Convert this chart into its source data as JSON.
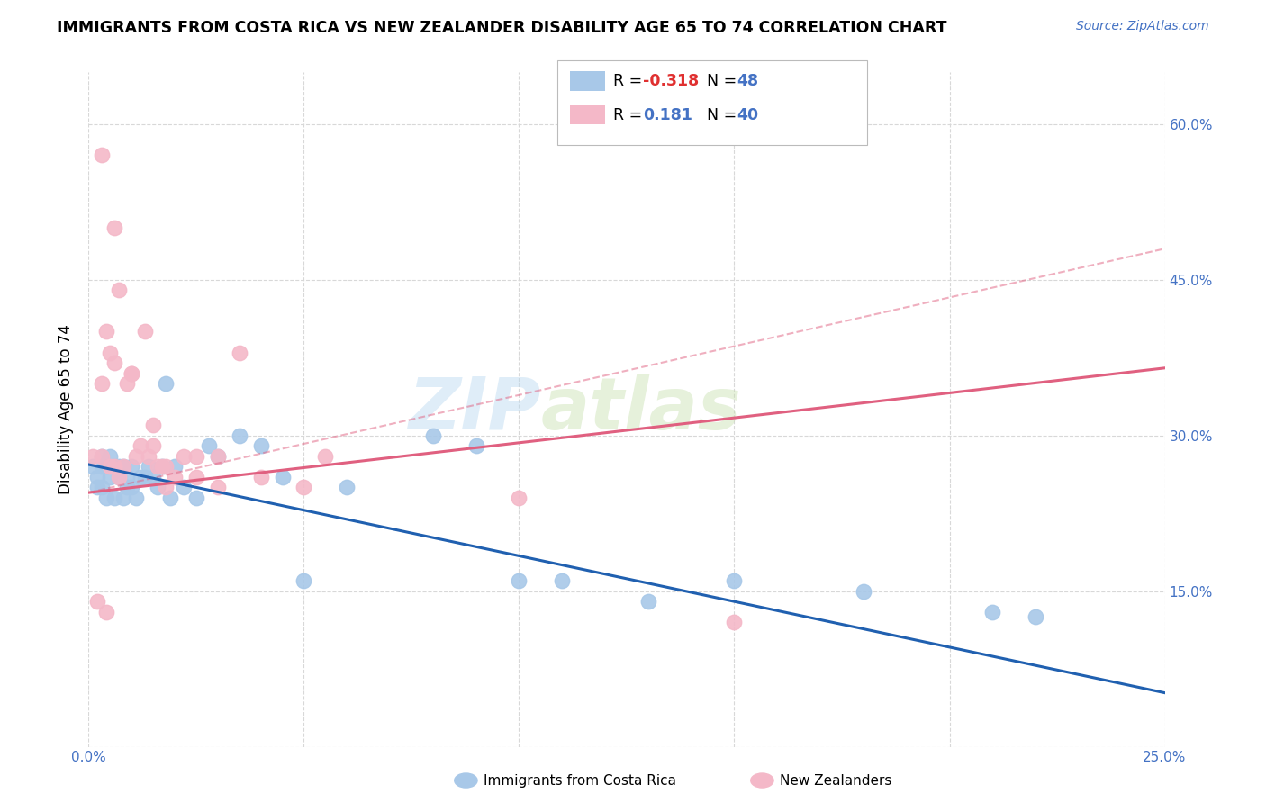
{
  "title": "IMMIGRANTS FROM COSTA RICA VS NEW ZEALANDER DISABILITY AGE 65 TO 74 CORRELATION CHART",
  "source": "Source: ZipAtlas.com",
  "ylabel": "Disability Age 65 to 74",
  "xlim": [
    0.0,
    0.25
  ],
  "ylim": [
    0.0,
    0.65
  ],
  "xtick_positions": [
    0.0,
    0.05,
    0.1,
    0.15,
    0.2,
    0.25
  ],
  "ytick_positions": [
    0.0,
    0.15,
    0.3,
    0.45,
    0.6
  ],
  "xticklabels": [
    "0.0%",
    "",
    "",
    "",
    "",
    "25.0%"
  ],
  "yticklabels_right": [
    "",
    "15.0%",
    "30.0%",
    "45.0%",
    "60.0%"
  ],
  "color_blue": "#a8c8e8",
  "color_pink": "#f4b8c8",
  "line_color_blue": "#2060b0",
  "line_color_pink": "#e06080",
  "background_color": "#ffffff",
  "grid_color": "#d8d8d8",
  "watermark_zip": "ZIP",
  "watermark_atlas": "atlas",
  "blue_line_x": [
    0.0,
    0.25
  ],
  "blue_line_y": [
    0.272,
    0.052
  ],
  "pink_solid_line_x": [
    0.0,
    0.25
  ],
  "pink_solid_line_y": [
    0.245,
    0.365
  ],
  "pink_dashed_line_x": [
    0.0,
    0.25
  ],
  "pink_dashed_line_y": [
    0.245,
    0.48
  ],
  "blue_scatter_x": [
    0.001,
    0.002,
    0.002,
    0.003,
    0.003,
    0.003,
    0.004,
    0.004,
    0.005,
    0.005,
    0.006,
    0.006,
    0.007,
    0.007,
    0.008,
    0.008,
    0.009,
    0.009,
    0.01,
    0.01,
    0.011,
    0.012,
    0.013,
    0.014,
    0.015,
    0.016,
    0.017,
    0.018,
    0.019,
    0.02,
    0.022,
    0.025,
    0.028,
    0.03,
    0.035,
    0.04,
    0.045,
    0.05,
    0.06,
    0.08,
    0.09,
    0.11,
    0.13,
    0.15,
    0.18,
    0.21,
    0.22,
    0.1
  ],
  "blue_scatter_y": [
    0.27,
    0.26,
    0.25,
    0.28,
    0.27,
    0.25,
    0.27,
    0.24,
    0.28,
    0.26,
    0.27,
    0.24,
    0.26,
    0.27,
    0.27,
    0.24,
    0.26,
    0.25,
    0.25,
    0.27,
    0.24,
    0.26,
    0.26,
    0.27,
    0.26,
    0.25,
    0.27,
    0.35,
    0.24,
    0.27,
    0.25,
    0.24,
    0.29,
    0.28,
    0.3,
    0.29,
    0.26,
    0.16,
    0.25,
    0.3,
    0.29,
    0.16,
    0.14,
    0.16,
    0.15,
    0.13,
    0.125,
    0.16
  ],
  "pink_scatter_x": [
    0.001,
    0.002,
    0.003,
    0.003,
    0.004,
    0.004,
    0.005,
    0.005,
    0.006,
    0.006,
    0.007,
    0.007,
    0.008,
    0.009,
    0.01,
    0.011,
    0.012,
    0.013,
    0.014,
    0.015,
    0.016,
    0.017,
    0.018,
    0.02,
    0.022,
    0.025,
    0.03,
    0.035,
    0.04,
    0.05,
    0.055,
    0.1,
    0.15,
    0.003,
    0.006,
    0.01,
    0.015,
    0.018,
    0.025,
    0.03
  ],
  "pink_scatter_y": [
    0.28,
    0.14,
    0.28,
    0.57,
    0.13,
    0.4,
    0.27,
    0.38,
    0.27,
    0.5,
    0.26,
    0.44,
    0.27,
    0.35,
    0.36,
    0.28,
    0.29,
    0.4,
    0.28,
    0.31,
    0.27,
    0.27,
    0.27,
    0.26,
    0.28,
    0.26,
    0.25,
    0.38,
    0.26,
    0.25,
    0.28,
    0.24,
    0.12,
    0.35,
    0.37,
    0.36,
    0.29,
    0.25,
    0.28,
    0.28
  ]
}
